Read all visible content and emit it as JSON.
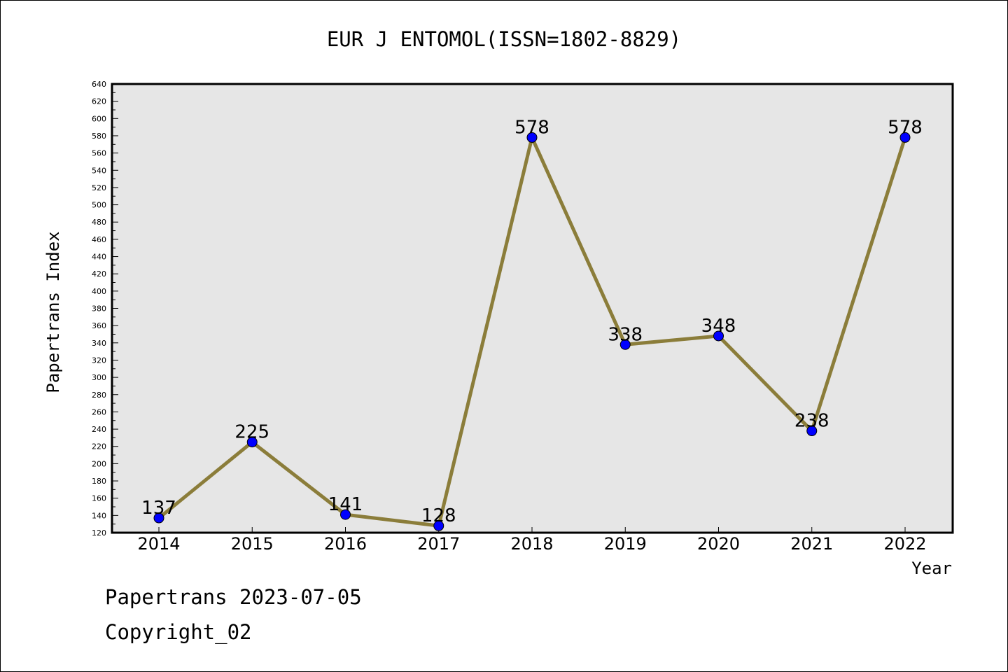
{
  "chart_data": {
    "type": "line",
    "title": "EUR J ENTOMOL(ISSN=1802-8829)",
    "xlabel": "Year",
    "ylabel": "Papertrans Index",
    "categories": [
      "2014",
      "2015",
      "2016",
      "2017",
      "2018",
      "2019",
      "2020",
      "2021",
      "2022"
    ],
    "series": [
      {
        "values": [
          137,
          225,
          141,
          128,
          578,
          338,
          348,
          238,
          578
        ]
      }
    ],
    "ylim": [
      120,
      640
    ],
    "ytick_step": 20,
    "ytick_minor_step": 10,
    "grid": false,
    "data_labels": true,
    "colors": {
      "line": "#8b7d3a",
      "marker": "#0000ff",
      "plot_background": "#e6e6e6"
    }
  },
  "footer": {
    "line1": "Papertrans 2023-07-05",
    "line2": "Copyright_02"
  }
}
